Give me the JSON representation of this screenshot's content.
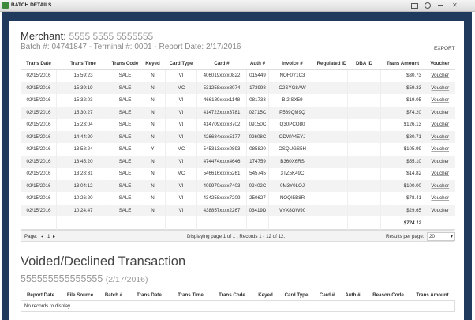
{
  "window": {
    "title": "BATCH DETAILS"
  },
  "merchant": {
    "label": "Merchant:",
    "number": "5555 5555 5555555"
  },
  "batch_info": "Batch #: 04741847 - Terminal #: 0001 - Report Date: 2/17/2016",
  "export": "EXPORT",
  "table": {
    "headers": [
      "Trans Date",
      "Trans Time",
      "Trans Code",
      "Keyed",
      "Card Type",
      "Card #",
      "Auth #",
      "Invoice #",
      "Regulated ID",
      "DBA ID",
      "Trans Amount",
      "Voucher"
    ],
    "rows": [
      [
        "02/15/2016",
        "15:59:23",
        "SALE",
        "N",
        "VI",
        "406019xxxx0822",
        "015449",
        "NOF0Y1C3",
        "$30.73",
        "Voucher"
      ],
      [
        "02/15/2016",
        "15:39:19",
        "SALE",
        "N",
        "MC",
        "531258xxxx8074",
        "173998",
        "C2SYG8AW",
        "$59.33",
        "Voucher"
      ],
      [
        "02/15/2016",
        "15:32:03",
        "SALE",
        "N",
        "VI",
        "466189xxxx1148",
        "081733",
        "BI2ISX59",
        "$19.05",
        "Voucher"
      ],
      [
        "02/15/2016",
        "15:30:27",
        "SALE",
        "N",
        "VI",
        "414723xxxx3781",
        "02715C",
        "P589QM9Q",
        "$74.20",
        "Voucher"
      ],
      [
        "02/15/2016",
        "15:23:04",
        "SALE",
        "N",
        "VI",
        "414709xxxx8702",
        "09150C",
        "Q30PCO80",
        "$126.13",
        "Voucher"
      ],
      [
        "02/15/2016",
        "14:44:20",
        "SALE",
        "N",
        "VI",
        "426684xxxx5177",
        "02608C",
        "ODWA4EYJ",
        "$30.71",
        "Voucher"
      ],
      [
        "02/15/2016",
        "13:58:24",
        "SALE",
        "Y",
        "MC",
        "545313xxxx0893",
        "085820",
        "OSQUGS5H",
        "$105.99",
        "Voucher"
      ],
      [
        "02/15/2016",
        "13:45:20",
        "SALE",
        "N",
        "VI",
        "474474xxxx4646",
        "174759",
        "B360X6RS",
        "$55.10",
        "Voucher"
      ],
      [
        "02/15/2016",
        "13:28:31",
        "SALE",
        "N",
        "MC",
        "546616xxxx5261",
        "545745",
        "3TZ5K49C",
        "$14.82",
        "Voucher"
      ],
      [
        "02/15/2016",
        "13:04:12",
        "SALE",
        "N",
        "VI",
        "409970xxxx7403",
        "02402C",
        "0M3Y0LOJ",
        "$100.00",
        "Voucher"
      ],
      [
        "02/15/2016",
        "10:26:20",
        "SALE",
        "N",
        "VI",
        "434258xxxx7209",
        "250627",
        "NOQI5B8R",
        "$78.41",
        "Voucher"
      ],
      [
        "02/15/2016",
        "10:24:47",
        "SALE",
        "N",
        "VI",
        "438857xxxx2267",
        "03419D",
        "VYX8OW90",
        "$29.65",
        "Voucher"
      ]
    ],
    "total": "$724.12"
  },
  "pager": {
    "page_label": "Page:",
    "page": "1",
    "status": "Displaying page 1 of 1 , Records 1 - 12 of 12.",
    "per_page_label": "Results per page:",
    "per_page": "20"
  },
  "voided": {
    "title": "Voided/Declined Transaction",
    "merchant_number": "555555555555555",
    "date": "(2/17/2016)",
    "headers": [
      "Report Date",
      "File Source",
      "Batch #",
      "Trans Date",
      "Trans Time",
      "Trans Code",
      "Keyed",
      "Card Type",
      "Card #",
      "Auth #",
      "Reason Code",
      "Trans Amount"
    ],
    "empty": "No records to display."
  }
}
